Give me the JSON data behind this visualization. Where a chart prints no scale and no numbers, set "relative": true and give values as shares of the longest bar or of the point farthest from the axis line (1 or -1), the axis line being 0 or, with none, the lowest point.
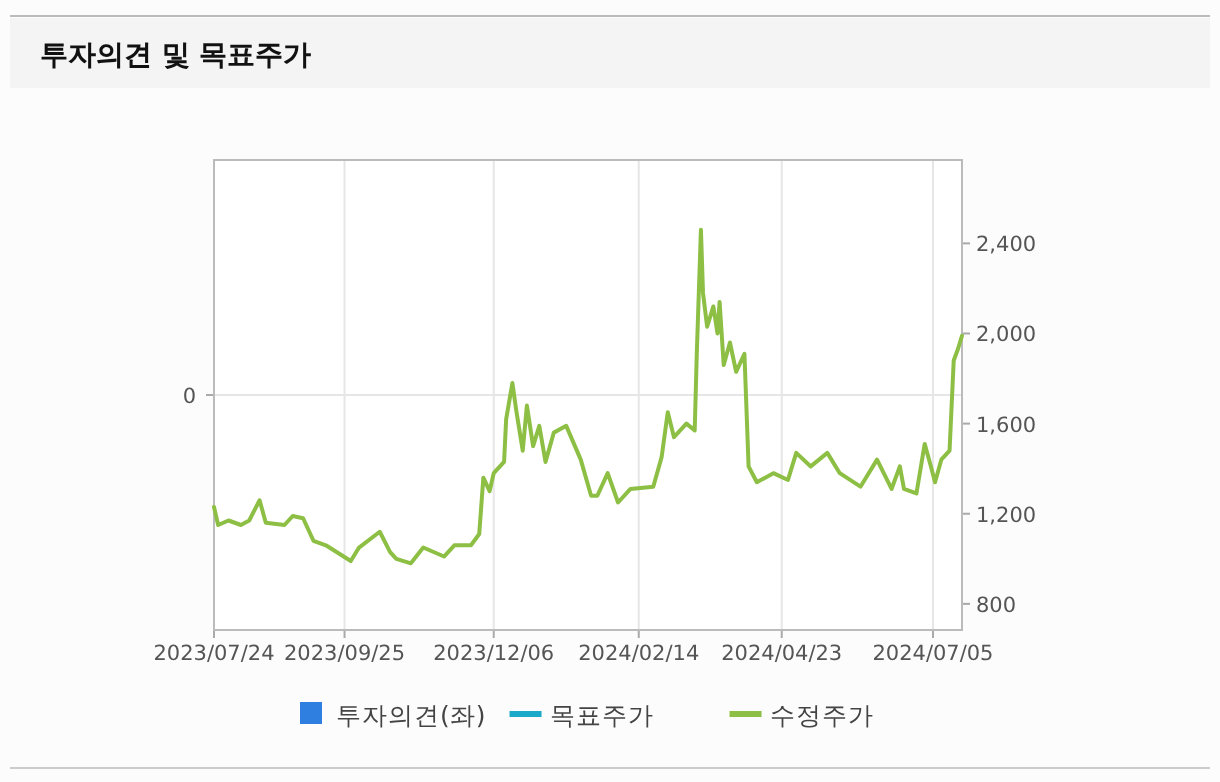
{
  "chart_data": {
    "type": "line",
    "title": "투자의견 및 목표주가",
    "xlim": [
      "2023-07-24",
      "2024-07-19"
    ],
    "xticks": [
      {
        "value": "2023-07-24",
        "label": "2023/07/24"
      },
      {
        "value": "2023-09-25",
        "label": "2023/09/25"
      },
      {
        "value": "2023-12-06",
        "label": "2023/12/06"
      },
      {
        "value": "2024-02-14",
        "label": "2024/02/14"
      },
      {
        "value": "2024-04-23",
        "label": "2024/04/23"
      },
      {
        "value": "2024-07-05",
        "label": "2024/07/05"
      }
    ],
    "relative": true,
    "annotations": [
      "0"
    ],
    "y2lim": [
      684,
      2770
    ],
    "y2ticks": [
      {
        "value": 800,
        "label": "800"
      },
      {
        "value": 1200,
        "label": "1,200"
      },
      {
        "value": 1600,
        "label": "1,600"
      },
      {
        "value": 2000,
        "label": "2,000"
      },
      {
        "value": 2400,
        "label": "2,400"
      }
    ],
    "grid": true,
    "legend": "bottom",
    "series": [
      {
        "name": "투자의견(좌)",
        "type": "bar",
        "axis": "y",
        "color": "#2f7fe0"
      },
      {
        "name": "목표주가",
        "type": "line",
        "axis": "y2",
        "color": "#1aa9c9"
      },
      {
        "name": "수정주가",
        "axis": "y2",
        "color": "#8dbf45",
        "x": [
          "2023-07-24",
          "2023-07-26",
          "2023-07-31",
          "2023-08-06",
          "2023-08-10",
          "2023-08-15",
          "2023-08-18",
          "2023-08-27",
          "2023-08-31",
          "2023-09-05",
          "2023-09-10",
          "2023-09-16",
          "2023-09-28",
          "2023-10-02",
          "2023-10-12",
          "2023-10-17",
          "2023-10-20",
          "2023-10-27",
          "2023-11-02",
          "2023-11-12",
          "2023-11-17",
          "2023-11-25",
          "2023-11-29",
          "2023-12-01",
          "2023-12-04",
          "2023-12-06",
          "2023-12-11",
          "2023-12-12",
          "2023-12-15",
          "2023-12-17",
          "2023-12-20",
          "2023-12-22",
          "2023-12-25",
          "2023-12-28",
          "2023-12-31",
          "2024-01-04",
          "2024-01-10",
          "2024-01-17",
          "2024-01-22",
          "2024-01-25",
          "2024-01-30",
          "2024-02-04",
          "2024-02-10",
          "2024-02-21",
          "2024-02-25",
          "2024-02-28",
          "2024-03-02",
          "2024-03-08",
          "2024-03-12",
          "2024-03-13",
          "2024-03-15",
          "2024-03-16",
          "2024-03-18",
          "2024-03-21",
          "2024-03-23",
          "2024-03-24",
          "2024-03-26",
          "2024-03-29",
          "2024-04-01",
          "2024-04-05",
          "2024-04-07",
          "2024-04-11",
          "2024-04-19",
          "2024-04-26",
          "2024-04-30",
          "2024-05-07",
          "2024-05-15",
          "2024-05-21",
          "2024-05-31",
          "2024-06-08",
          "2024-06-15",
          "2024-06-19",
          "2024-06-21",
          "2024-06-27",
          "2024-07-01",
          "2024-07-04",
          "2024-07-06",
          "2024-07-09",
          "2024-07-13",
          "2024-07-15",
          "2024-07-17",
          "2024-07-19"
        ],
        "values": [
          1230,
          1150,
          1170,
          1150,
          1170,
          1260,
          1160,
          1150,
          1190,
          1180,
          1080,
          1060,
          990,
          1050,
          1120,
          1030,
          1000,
          980,
          1050,
          1010,
          1060,
          1060,
          1110,
          1360,
          1300,
          1380,
          1430,
          1620,
          1780,
          1650,
          1480,
          1680,
          1500,
          1590,
          1430,
          1560,
          1590,
          1440,
          1280,
          1280,
          1380,
          1250,
          1310,
          1320,
          1450,
          1650,
          1540,
          1600,
          1570,
          1910,
          2460,
          2180,
          2030,
          2120,
          2000,
          2140,
          1860,
          1960,
          1830,
          1910,
          1410,
          1340,
          1380,
          1350,
          1470,
          1410,
          1470,
          1380,
          1320,
          1440,
          1310,
          1410,
          1310,
          1290,
          1510,
          1410,
          1340,
          1440,
          1480,
          1880,
          1930,
          1990
        ]
      }
    ]
  }
}
